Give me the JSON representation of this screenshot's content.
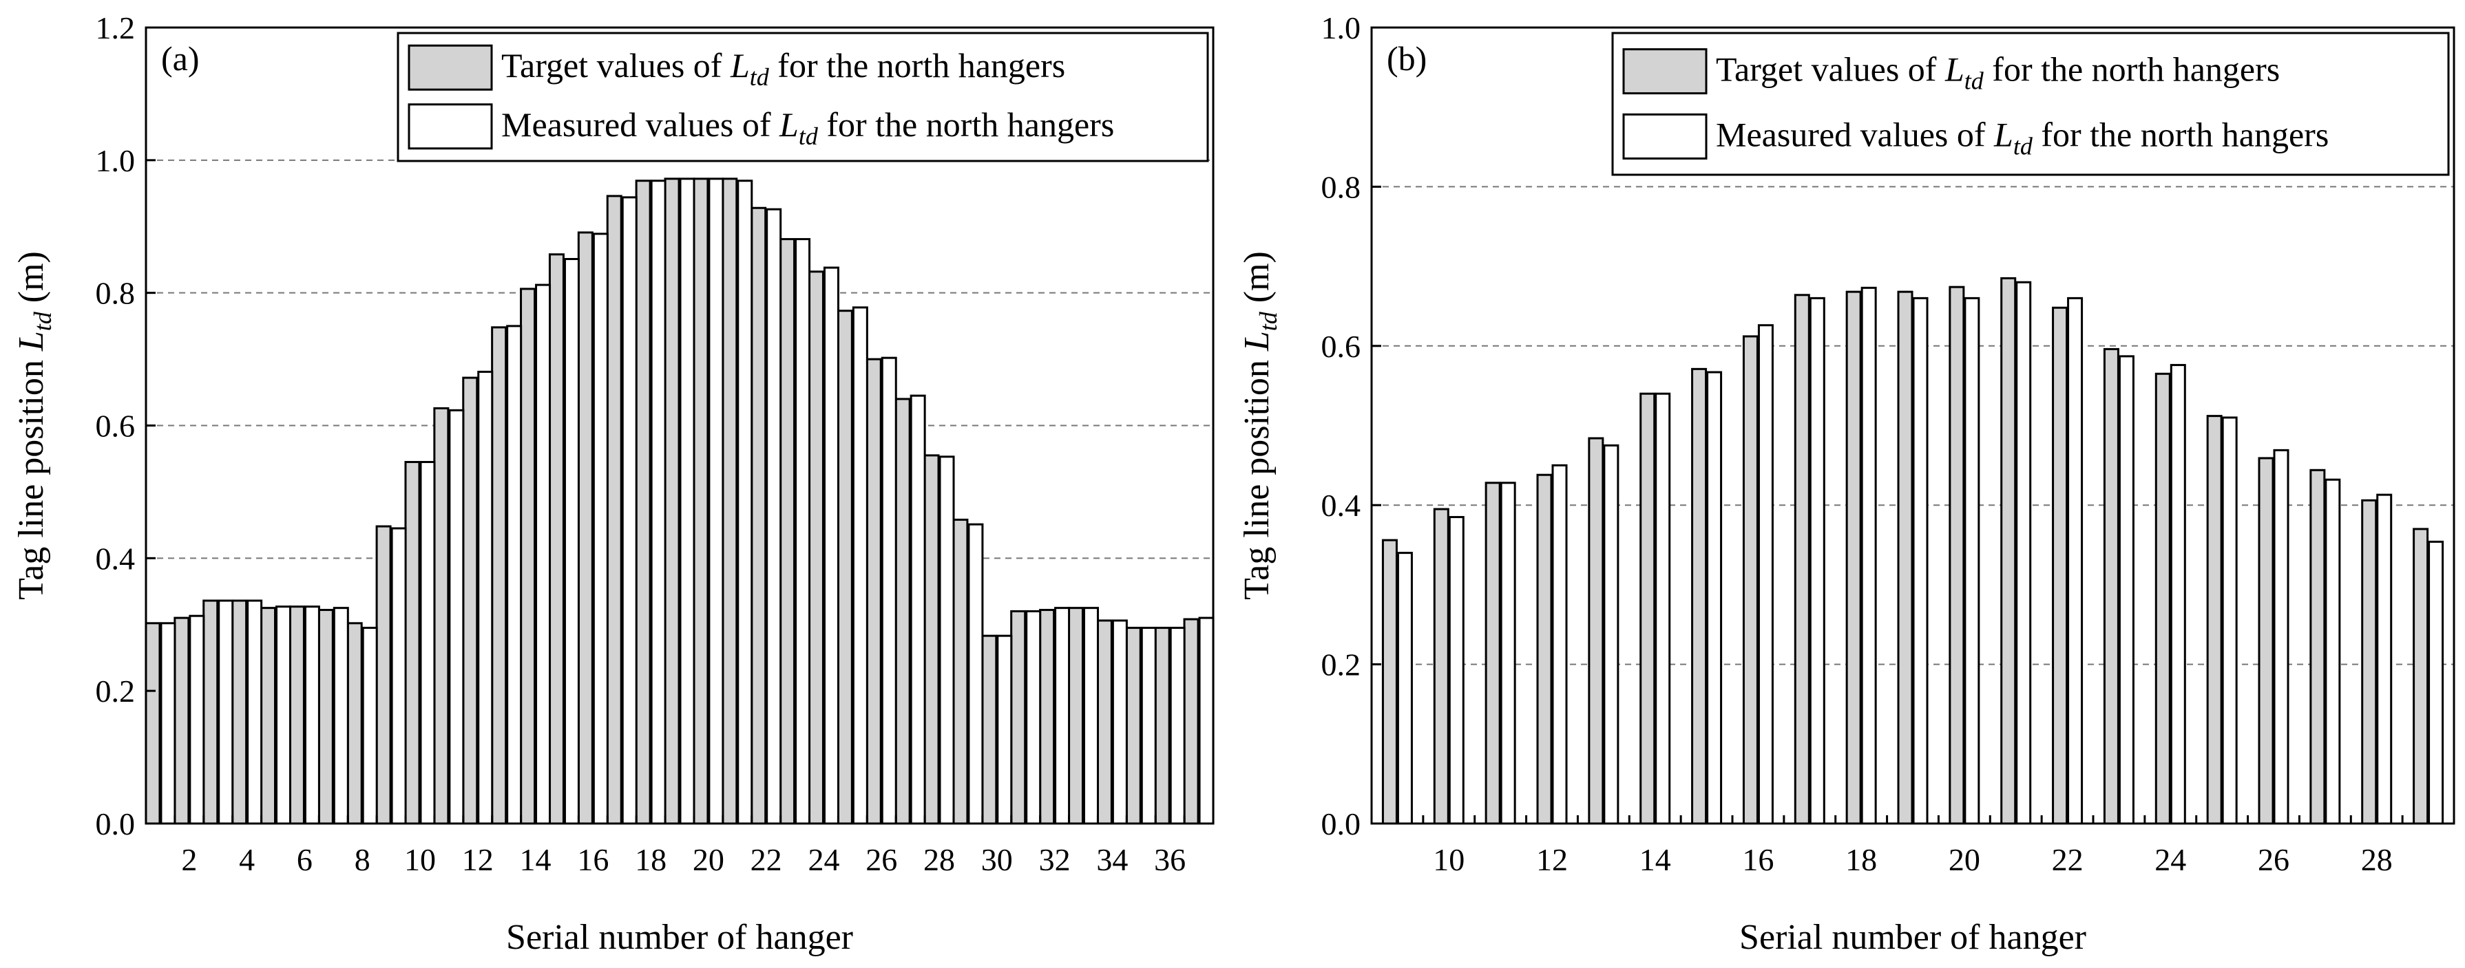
{
  "colors": {
    "target": "#d3d3d3",
    "measured": "#ffffff",
    "axis": "#000000",
    "grid": "#777777"
  },
  "chart_data": [
    {
      "type": "bar",
      "panel_label": "(a)",
      "xlabel": "Serial number of hanger",
      "ylabel_main": "Tag line position ",
      "ylabel_var": "L",
      "ylabel_sub": "td",
      "ylabel_unit": " (m)",
      "ylim": [
        0,
        1.2
      ],
      "yticks": [
        0.0,
        0.2,
        0.4,
        0.6,
        0.8,
        1.0,
        1.2
      ],
      "ytick_labels": [
        "0.0",
        "0.2",
        "0.4",
        "0.6",
        "0.8",
        "1.0",
        "1.2"
      ],
      "grid_lines": [
        0.2,
        0.4,
        0.6,
        0.8,
        1.0
      ],
      "categories": [
        1,
        2,
        3,
        4,
        5,
        6,
        7,
        8,
        9,
        10,
        11,
        12,
        13,
        14,
        15,
        16,
        17,
        18,
        19,
        20,
        21,
        22,
        23,
        24,
        25,
        26,
        27,
        28,
        29,
        30,
        31,
        32,
        33,
        34,
        35,
        36,
        37
      ],
      "xtick_labels": [
        "2",
        "4",
        "6",
        "8",
        "10",
        "12",
        "14",
        "16",
        "18",
        "20",
        "22",
        "24",
        "26",
        "28",
        "30",
        "32",
        "34",
        "36"
      ],
      "xtick_values": [
        2,
        4,
        6,
        8,
        10,
        12,
        14,
        16,
        18,
        20,
        22,
        24,
        26,
        28,
        30,
        32,
        34,
        36
      ],
      "legend_position": "top-right",
      "legend": [
        {
          "prefix": "Target values of ",
          "var": "L",
          "sub": "td",
          "suffix": " for the north hangers"
        },
        {
          "prefix": "Measured values of ",
          "var": "L",
          "sub": "td",
          "suffix": " for the north hangers"
        }
      ],
      "series": [
        {
          "name": "Target values of Ltd for the north hangers",
          "values": [
            0.302,
            0.31,
            0.336,
            0.336,
            0.325,
            0.327,
            0.322,
            0.302,
            0.448,
            0.545,
            0.626,
            0.672,
            0.748,
            0.806,
            0.858,
            0.891,
            0.946,
            0.969,
            0.972,
            0.972,
            0.972,
            0.928,
            0.881,
            0.832,
            0.773,
            0.7,
            0.64,
            0.555,
            0.458,
            0.283,
            0.32,
            0.322,
            0.325,
            0.306,
            0.295,
            0.295,
            0.308
          ]
        },
        {
          "name": "Measured values of Ltd for the north hangers",
          "values": [
            0.302,
            0.313,
            0.336,
            0.336,
            0.327,
            0.327,
            0.325,
            0.295,
            0.445,
            0.545,
            0.623,
            0.681,
            0.75,
            0.812,
            0.851,
            0.889,
            0.944,
            0.969,
            0.972,
            0.972,
            0.969,
            0.926,
            0.881,
            0.838,
            0.778,
            0.702,
            0.645,
            0.553,
            0.451,
            0.283,
            0.32,
            0.325,
            0.325,
            0.306,
            0.295,
            0.295,
            0.31
          ]
        }
      ]
    },
    {
      "type": "bar",
      "panel_label": "(b)",
      "xlabel": "Serial number of hanger",
      "ylabel_main": "Tag line position ",
      "ylabel_var": "L",
      "ylabel_sub": "td",
      "ylabel_unit": " (m)",
      "ylim": [
        0,
        1.0
      ],
      "yticks": [
        0.0,
        0.2,
        0.4,
        0.6,
        0.8,
        1.0
      ],
      "ytick_labels": [
        "0.0",
        "0.2",
        "0.4",
        "0.6",
        "0.8",
        "1.0"
      ],
      "grid_lines": [
        0.2,
        0.4,
        0.6,
        0.8
      ],
      "categories": [
        9,
        10,
        11,
        12,
        13,
        14,
        15,
        16,
        17,
        18,
        19,
        20,
        21,
        22,
        23,
        24,
        25,
        26,
        27,
        28,
        29
      ],
      "xtick_labels": [
        "10",
        "12",
        "14",
        "16",
        "18",
        "20",
        "22",
        "24",
        "26",
        "28"
      ],
      "xtick_values": [
        10,
        12,
        14,
        16,
        18,
        20,
        22,
        24,
        26,
        28
      ],
      "legend_position": "top-right",
      "legend": [
        {
          "prefix": "Target values of ",
          "var": "L",
          "sub": "td",
          "suffix": " for the north hangers"
        },
        {
          "prefix": "Measured values of ",
          "var": "L",
          "sub": "td",
          "suffix": " for the north hangers"
        }
      ],
      "series": [
        {
          "name": "Target values of Ltd for the north hangers",
          "values": [
            0.356,
            0.395,
            0.428,
            0.438,
            0.484,
            0.54,
            0.571,
            0.612,
            0.664,
            0.668,
            0.668,
            0.674,
            0.685,
            0.648,
            0.596,
            0.565,
            0.512,
            0.459,
            0.444,
            0.406,
            0.37
          ]
        },
        {
          "name": "Measured values of Ltd for the north hangers",
          "values": [
            0.34,
            0.385,
            0.428,
            0.45,
            0.475,
            0.54,
            0.567,
            0.626,
            0.66,
            0.673,
            0.66,
            0.66,
            0.68,
            0.66,
            0.587,
            0.576,
            0.51,
            0.469,
            0.432,
            0.413,
            0.354
          ]
        }
      ]
    }
  ]
}
